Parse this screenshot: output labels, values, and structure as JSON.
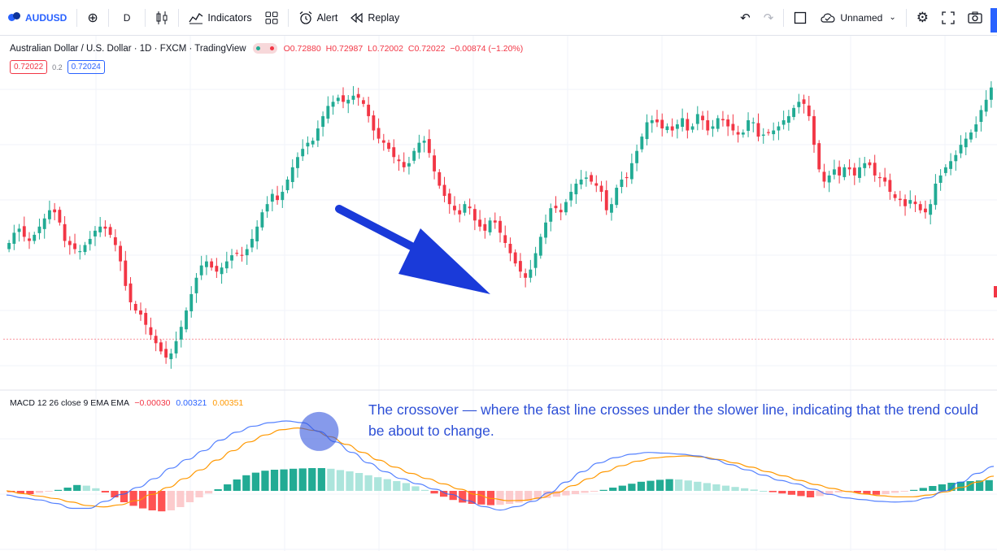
{
  "toolbar": {
    "symbol": "AUDUSD",
    "interval": "D",
    "indicators_label": "Indicators",
    "alert_label": "Alert",
    "replay_label": "Replay",
    "layout_name": "Unnamed",
    "icons": {
      "add": "plus-circle-icon",
      "bar_style": "candles-icon",
      "indicators": "indicators-icon",
      "templates": "grid-icon",
      "alert": "alarm-icon",
      "replay": "rewind-icon",
      "undo": "undo-icon",
      "redo": "redo-icon",
      "fullscreen_box": "square-icon",
      "cloud": "cloud-check-icon",
      "chevron": "chevron-down-icon",
      "settings": "gear-icon",
      "fullscreen": "fullscreen-icon",
      "snapshot": "camera-icon"
    }
  },
  "legend": {
    "title": "Australian Dollar / U.S. Dollar · 1D · FXCM · TradingView",
    "open_key": "O",
    "open": "0.72880",
    "high_key": "H",
    "high": "0.72987",
    "low_key": "L",
    "low": "0.72002",
    "close_key": "C",
    "close": "0.72022",
    "change": "−0.00874 (−1.20%)",
    "bid": "0.72022",
    "spread": "0.2",
    "ask": "0.72024"
  },
  "macd_legend": {
    "label": "MACD 12 26 close 9 EMA EMA",
    "histogram": "−0.00030",
    "macd": "0.00321",
    "signal": "0.00351"
  },
  "annotation": {
    "text": "The crossover — where the fast line crosses under the slower line, indicating that the trend could be about to change."
  },
  "colors": {
    "up": "#22ab94",
    "down": "#f23645",
    "hist_up_strong": "#22ab94",
    "hist_up_weak": "#ace5dc",
    "hist_down_strong": "#ff5252",
    "hist_down_weak": "#fccbcd",
    "macd_line": "#2962ff",
    "signal_line": "#ff9800",
    "annotation_blue": "#2d4fd6",
    "arrow_blue": "#1a3ad9"
  },
  "chart_data": [
    {
      "type": "candlestick",
      "close_trend": [
        0.7195,
        0.72,
        0.7202,
        0.7198,
        0.7196,
        0.7199,
        0.7203,
        0.7207,
        0.7211,
        0.721,
        0.7205,
        0.7196,
        0.7194,
        0.7192,
        0.7191,
        0.7194,
        0.7197,
        0.7201,
        0.7203,
        0.7202,
        0.7199,
        0.7194,
        0.7186,
        0.7174,
        0.7166,
        0.7162,
        0.716,
        0.7155,
        0.715,
        0.7146,
        0.7142,
        0.7139,
        0.7141,
        0.7147,
        0.7154,
        0.7162,
        0.717,
        0.7178,
        0.7184,
        0.7186,
        0.7183,
        0.7181,
        0.7183,
        0.7186,
        0.7189,
        0.719,
        0.7189,
        0.7192,
        0.7197,
        0.7203,
        0.721,
        0.7214,
        0.7219,
        0.7216,
        0.722,
        0.7226,
        0.7232,
        0.7237,
        0.7241,
        0.7244,
        0.7245,
        0.7251,
        0.7257,
        0.7262,
        0.7264,
        0.7266,
        0.7264,
        0.7265,
        0.7267,
        0.7266,
        0.7263,
        0.7257,
        0.725,
        0.7246,
        0.7244,
        0.7241,
        0.7237,
        0.7235,
        0.7232,
        0.7234,
        0.724,
        0.7244,
        0.7245,
        0.7239,
        0.723,
        0.7223,
        0.7218,
        0.7214,
        0.7211,
        0.7209,
        0.7214,
        0.7212,
        0.7206,
        0.7203,
        0.7201,
        0.7206,
        0.7205,
        0.72,
        0.7195,
        0.719,
        0.7185,
        0.7181,
        0.7178,
        0.7182,
        0.719,
        0.7198,
        0.7205,
        0.7212,
        0.7212,
        0.721,
        0.7215,
        0.722,
        0.7224,
        0.7226,
        0.7227,
        0.7225,
        0.7223,
        0.722,
        0.7211,
        0.7214,
        0.7222,
        0.7226,
        0.7227,
        0.7234,
        0.724,
        0.7247,
        0.7254,
        0.7255,
        0.7254,
        0.7251,
        0.7252,
        0.725,
        0.7253,
        0.7256,
        0.725,
        0.7252,
        0.7258,
        0.7255,
        0.725,
        0.7252,
        0.7256,
        0.7255,
        0.7252,
        0.725,
        0.7248,
        0.7249,
        0.7255,
        0.7254,
        0.7247,
        0.7248,
        0.7249,
        0.725,
        0.7252,
        0.7255,
        0.7257,
        0.7261,
        0.7264,
        0.7263,
        0.7257,
        0.7243,
        0.7231,
        0.7225,
        0.7228,
        0.7231,
        0.7228,
        0.7232,
        0.7231,
        0.7228,
        0.7232,
        0.7234,
        0.7233,
        0.7228,
        0.7227,
        0.7225,
        0.722,
        0.7217,
        0.7216,
        0.7213,
        0.7216,
        0.7214,
        0.7211,
        0.721,
        0.7214,
        0.7224,
        0.7228,
        0.7232,
        0.7235,
        0.7238,
        0.7243,
        0.7246,
        0.7249,
        0.7253,
        0.726,
        0.7265,
        0.7271
      ],
      "horizontal_line": 0.7148
    },
    {
      "type": "macd",
      "histogram_trend": [
        -0.4,
        -0.8,
        -1.0,
        -0.6,
        -0.2,
        0.3,
        1.0,
        1.8,
        1.6,
        0.8,
        -0.5,
        -2.0,
        -3.5,
        -4.6,
        -5.4,
        -6.0,
        -6.3,
        -6.0,
        -5.0,
        -3.5,
        -2.0,
        -0.8,
        0.5,
        2.0,
        3.5,
        4.8,
        5.6,
        6.2,
        6.5,
        6.6,
        6.8,
        6.9,
        7.0,
        7.0,
        6.8,
        6.4,
        6.0,
        5.5,
        4.8,
        4.2,
        3.6,
        3.0,
        2.4,
        1.4,
        0.3,
        -0.8,
        -1.8,
        -2.8,
        -3.6,
        -4.0,
        -4.2,
        -4.4,
        -4.3,
        -4.0,
        -3.6,
        -3.1,
        -2.6,
        -2.2,
        -1.8,
        -1.4,
        -1.0,
        -0.6,
        -0.2,
        0.3,
        1.0,
        1.6,
        2.2,
        2.8,
        3.1,
        3.4,
        3.6,
        3.5,
        3.2,
        2.8,
        2.4,
        2.0,
        1.6,
        1.2,
        0.8,
        0.4,
        0.0,
        -0.4,
        -0.8,
        -1.2,
        -1.6,
        -2.0,
        -1.6,
        -1.1,
        -0.5,
        -0.2,
        -0.6,
        -1.0,
        -1.2,
        -1.0,
        -0.6,
        -0.2,
        0.3,
        0.9,
        1.5,
        2.0,
        2.5,
        2.8,
        3.0,
        3.2,
        3.3
      ],
      "macd_trend": [
        -1.2,
        -2.0,
        -2.6,
        -3.6,
        -5.0,
        -5.0,
        -3.0,
        -1.0,
        1.0,
        3.5,
        6.5,
        9.0,
        11.5,
        14.5,
        16.8,
        18.5,
        19.5,
        20.0,
        19.5,
        17.0,
        14.0,
        11.0,
        8.0,
        5.5,
        3.5,
        2.0,
        0.5,
        -1.0,
        -2.8,
        -4.5,
        -5.5,
        -4.5,
        -3.0,
        -0.5,
        2.5,
        5.5,
        8.0,
        9.5,
        10.5,
        11.0,
        10.8,
        10.5,
        10.0,
        9.0,
        7.5,
        6.0,
        4.5,
        3.0,
        2.0,
        0.5,
        -1.0,
        -2.0,
        -2.5,
        -3.0,
        -3.2,
        -3.0,
        -2.0,
        0.0,
        2.5,
        5.0,
        7.0
      ],
      "signal_trend": [
        0.0,
        -0.8,
        -1.5,
        -2.2,
        -3.2,
        -4.2,
        -4.6,
        -4.0,
        -2.8,
        -1.0,
        1.0,
        3.5,
        6.0,
        8.8,
        11.5,
        14.0,
        16.0,
        17.5,
        18.0,
        17.3,
        15.5,
        13.3,
        11.0,
        8.8,
        6.8,
        5.0,
        3.5,
        2.0,
        0.5,
        -1.0,
        -2.2,
        -2.8,
        -2.7,
        -2.0,
        -0.5,
        1.5,
        3.5,
        5.5,
        7.2,
        8.5,
        9.4,
        9.8,
        10.0,
        9.7,
        9.0,
        8.0,
        6.8,
        5.5,
        4.3,
        3.0,
        1.8,
        0.7,
        -0.2,
        -0.9,
        -1.4,
        -1.7,
        -1.7,
        -1.2,
        -0.3,
        1.0,
        2.5,
        4.2
      ],
      "crossover_index": 19
    }
  ]
}
